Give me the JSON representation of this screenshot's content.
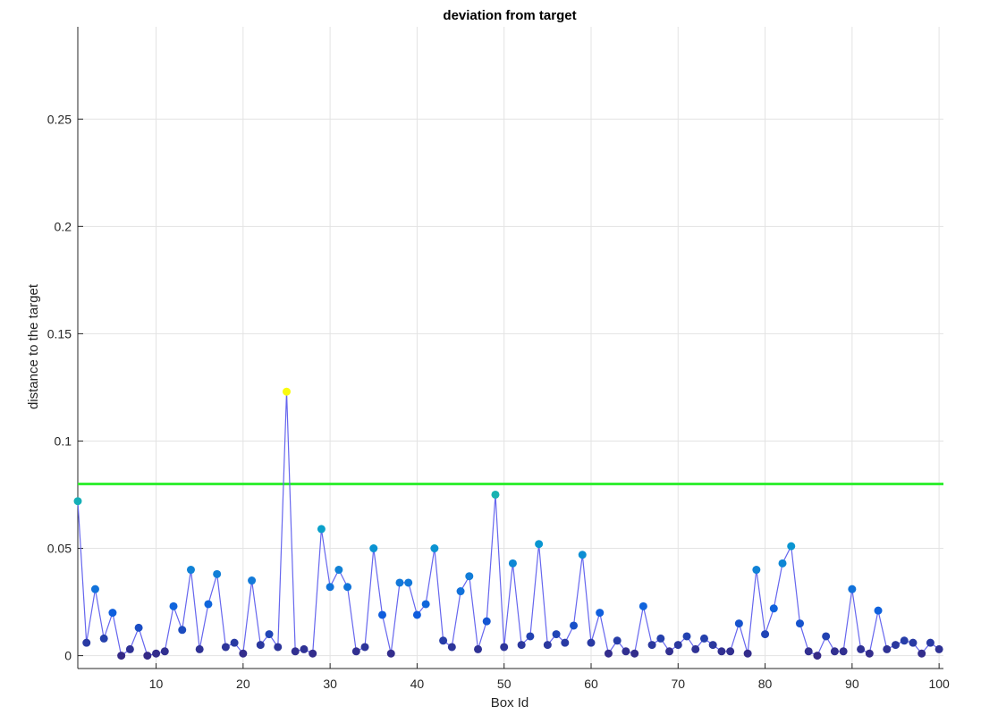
{
  "chart_data": {
    "type": "scatter",
    "title": "deviation from target",
    "xlabel": "Box Id",
    "ylabel": "distance to the target",
    "xlim": [
      1,
      100.5
    ],
    "ylim": [
      -0.006,
      0.293
    ],
    "xticks": [
      10,
      20,
      30,
      40,
      50,
      60,
      70,
      80,
      90,
      100
    ],
    "yticks": [
      0,
      0.05,
      0.1,
      0.15,
      0.2,
      0.25
    ],
    "ytick_labels": [
      "0",
      "0.05",
      "0.1",
      "0.15",
      "0.2",
      "0.25"
    ],
    "grid": true,
    "threshold": {
      "y": 0.08,
      "color": "#33ee33"
    },
    "line_color": "#6666ee",
    "colormap": "parula",
    "series": [
      {
        "x": [
          1,
          2,
          3,
          4,
          5,
          6,
          7,
          8,
          9,
          10,
          11,
          12,
          13,
          14,
          15,
          16,
          17,
          18,
          19,
          20,
          21,
          22,
          23,
          24,
          25,
          26,
          27,
          28,
          29,
          30,
          31,
          32,
          33,
          34,
          35,
          36,
          37,
          38,
          39,
          40,
          41,
          42,
          43,
          44,
          45,
          46,
          47,
          48,
          49,
          50,
          51,
          52,
          53,
          54,
          55,
          56,
          57,
          58,
          59,
          60,
          61,
          62,
          63,
          64,
          65,
          66,
          67,
          68,
          69,
          70,
          71,
          72,
          73,
          74,
          75,
          76,
          77,
          78,
          79,
          80,
          81,
          82,
          83,
          84,
          85,
          86,
          87,
          88,
          89,
          90,
          91,
          92,
          93,
          94,
          95,
          96,
          97,
          98,
          99,
          100
        ],
        "y": [
          0.072,
          0.006,
          0.031,
          0.008,
          0.02,
          0.0,
          0.003,
          0.013,
          0.0,
          0.001,
          0.002,
          0.023,
          0.012,
          0.04,
          0.003,
          0.024,
          0.038,
          0.004,
          0.006,
          0.001,
          0.035,
          0.005,
          0.01,
          0.004,
          0.123,
          0.002,
          0.003,
          0.001,
          0.059,
          0.032,
          0.04,
          0.032,
          0.002,
          0.004,
          0.05,
          0.019,
          0.001,
          0.034,
          0.034,
          0.019,
          0.024,
          0.05,
          0.007,
          0.004,
          0.03,
          0.037,
          0.003,
          0.016,
          0.075,
          0.004,
          0.043,
          0.005,
          0.009,
          0.052,
          0.005,
          0.01,
          0.006,
          0.014,
          0.047,
          0.006,
          0.02,
          0.001,
          0.007,
          0.002,
          0.001,
          0.023,
          0.005,
          0.008,
          0.002,
          0.005,
          0.009,
          0.003,
          0.008,
          0.005,
          0.002,
          0.002,
          0.015,
          0.001,
          0.04,
          0.01,
          0.022,
          0.043,
          0.051,
          0.015,
          0.002,
          0.0,
          0.009,
          0.002,
          0.002,
          0.031,
          0.003,
          0.001,
          0.021,
          0.003,
          0.005,
          0.007,
          0.006,
          0.001,
          0.006,
          0.003
        ]
      }
    ]
  }
}
